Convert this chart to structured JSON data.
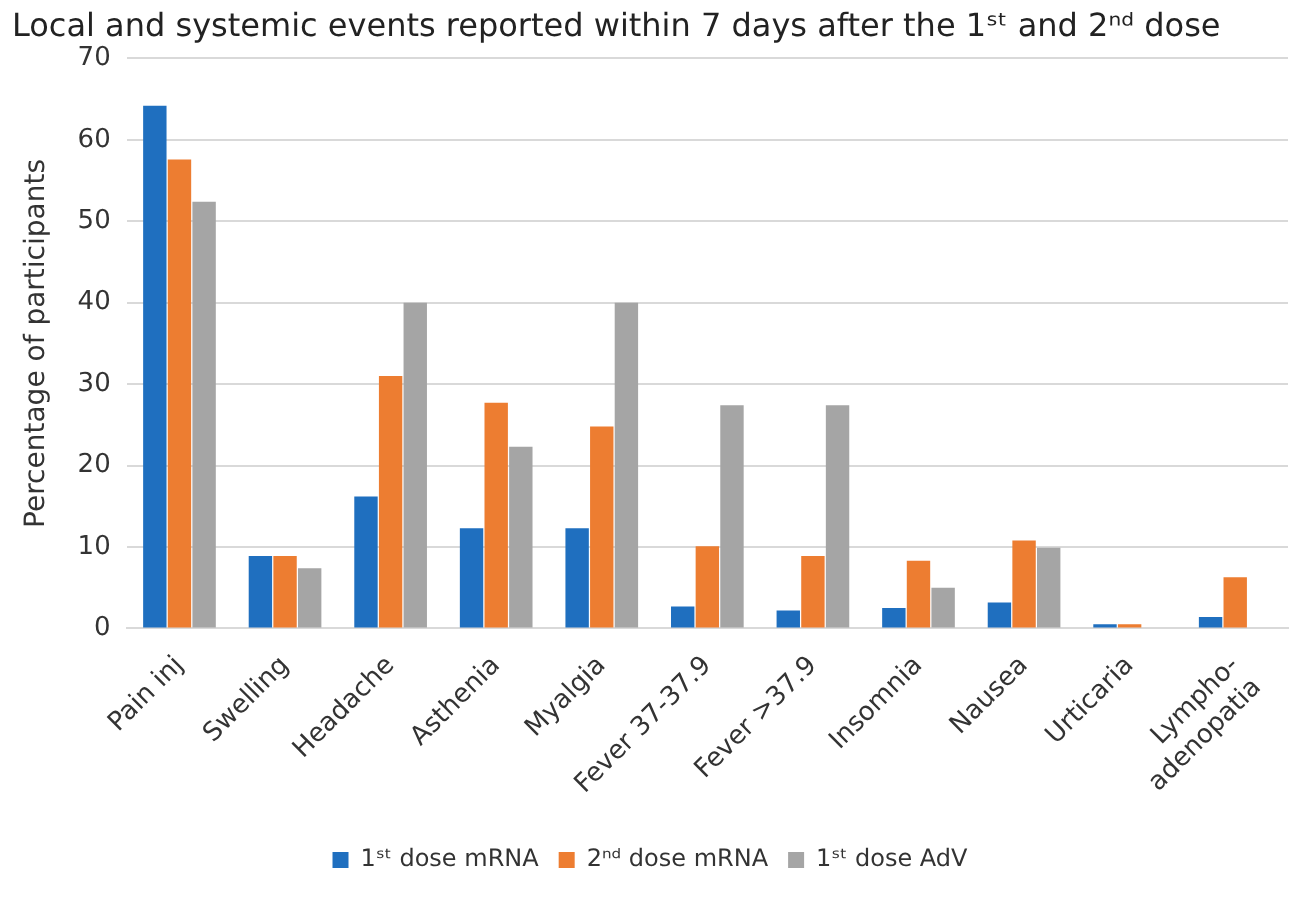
{
  "chart_data": {
    "type": "bar",
    "title": "Local and systemic events reported within 7 days after the 1ˢᵗ and 2ⁿᵈ dose",
    "ylabel": "Percentage of participants",
    "categories": [
      "Pain inj",
      "Swelling",
      "Headache",
      "Asthenia",
      "Myalgia",
      "Fever 37-37.9",
      "Fever >37.9",
      "Insomnia",
      "Nausea",
      "Urticaria",
      "Lympho-adenopatia"
    ],
    "series": [
      {
        "name": "1ˢᵗ dose mRNA",
        "color": "#1f6fbf",
        "values": [
          64.2,
          8.9,
          16.2,
          12.3,
          12.3,
          2.7,
          2.2,
          2.5,
          3.2,
          0.5,
          1.4
        ]
      },
      {
        "name": "2ⁿᵈ dose mRNA",
        "color": "#ed7d31",
        "values": [
          57.6,
          8.9,
          31.0,
          27.7,
          24.8,
          10.1,
          8.9,
          8.3,
          10.8,
          0.5,
          6.3
        ]
      },
      {
        "name": "1ˢᵗ dose AdV",
        "color": "#a5a5a5",
        "values": [
          52.4,
          7.4,
          40.0,
          22.3,
          40.0,
          27.4,
          27.4,
          5.0,
          9.9,
          0,
          0
        ]
      }
    ],
    "ylim": [
      0,
      70
    ],
    "yticks": [
      0,
      10,
      20,
      30,
      40,
      50,
      60,
      70
    ],
    "grid": "y",
    "legend": "bottom"
  }
}
